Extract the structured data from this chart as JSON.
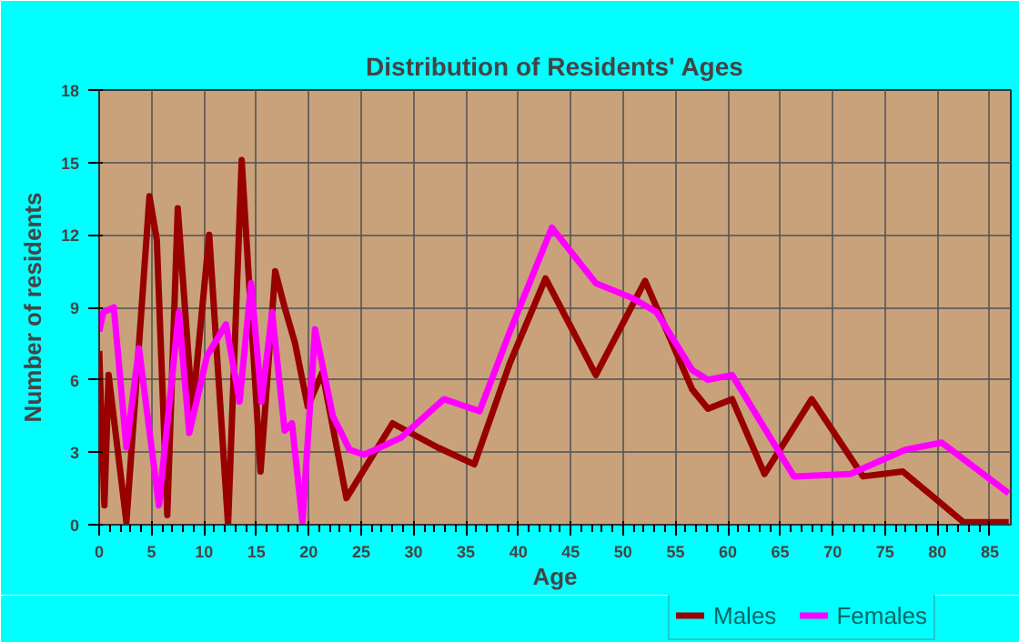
{
  "chart_data": {
    "type": "line",
    "title": "Distribution of Residents' Ages",
    "xlabel": "Age",
    "ylabel": "Number of residents",
    "xlim": [
      0,
      87
    ],
    "xticks": [
      0,
      5,
      10,
      15,
      20,
      25,
      30,
      35,
      40,
      45,
      50,
      55,
      60,
      65,
      70,
      75,
      80,
      85
    ],
    "ylim": [
      0,
      18
    ],
    "yticks": [
      0,
      3,
      6,
      9,
      12,
      15,
      18
    ],
    "grid": true,
    "legend": "bottom right",
    "marker": "none",
    "line_style": "solid",
    "series": [
      {
        "name": "Males",
        "color": "#990000",
        "x": [
          0,
          0.5,
          0.9,
          2.6,
          4.8,
          5.5,
          6.5,
          7.5,
          8.9,
          10.5,
          12.3,
          13.6,
          15.4,
          16.8,
          17.7,
          18.7,
          19.9,
          21.3,
          23.6,
          28,
          32.3,
          35.8,
          39.2,
          42.6,
          47.4,
          52.1,
          56.6,
          58.1,
          60.4,
          63.5,
          68,
          72.9,
          76.7,
          82.5,
          86.8
        ],
        "values": [
          7.2,
          0.8,
          6.2,
          0.1,
          13.6,
          11.8,
          0.4,
          13.1,
          4.7,
          12.0,
          0,
          15.1,
          2.2,
          10.5,
          9.0,
          7.5,
          4.9,
          6.3,
          1.1,
          4.2,
          3.2,
          2.5,
          6.7,
          10.2,
          6.2,
          10.1,
          5.6,
          4.8,
          5.2,
          2.1,
          5.2,
          2.0,
          2.2,
          0.1,
          0.1
        ]
      },
      {
        "name": "Females",
        "color": "#ff00ff",
        "x": [
          0,
          0.4,
          1.4,
          2.6,
          3.8,
          5.7,
          7.6,
          8.6,
          10.3,
          12.1,
          13.4,
          14.5,
          15.5,
          16.5,
          17.7,
          18.4,
          19.4,
          20.6,
          22.3,
          23.9,
          25.3,
          28.8,
          32.9,
          36.3,
          39.2,
          43.2,
          47.4,
          50.8,
          53.2,
          56.6,
          58.1,
          60.4,
          66.3,
          71.7,
          76.9,
          80.4,
          86.8
        ],
        "values": [
          8.0,
          8.8,
          9.0,
          3.2,
          7.3,
          0.8,
          8.8,
          3.8,
          7.0,
          8.3,
          5.1,
          10.0,
          5.1,
          8.8,
          3.9,
          4.2,
          0.1,
          8.1,
          4.5,
          3.1,
          2.9,
          3.6,
          5.2,
          4.7,
          8.0,
          12.3,
          10.0,
          9.4,
          8.8,
          6.4,
          6.0,
          6.2,
          2.0,
          2.1,
          3.1,
          3.4,
          1.3
        ]
      }
    ]
  }
}
